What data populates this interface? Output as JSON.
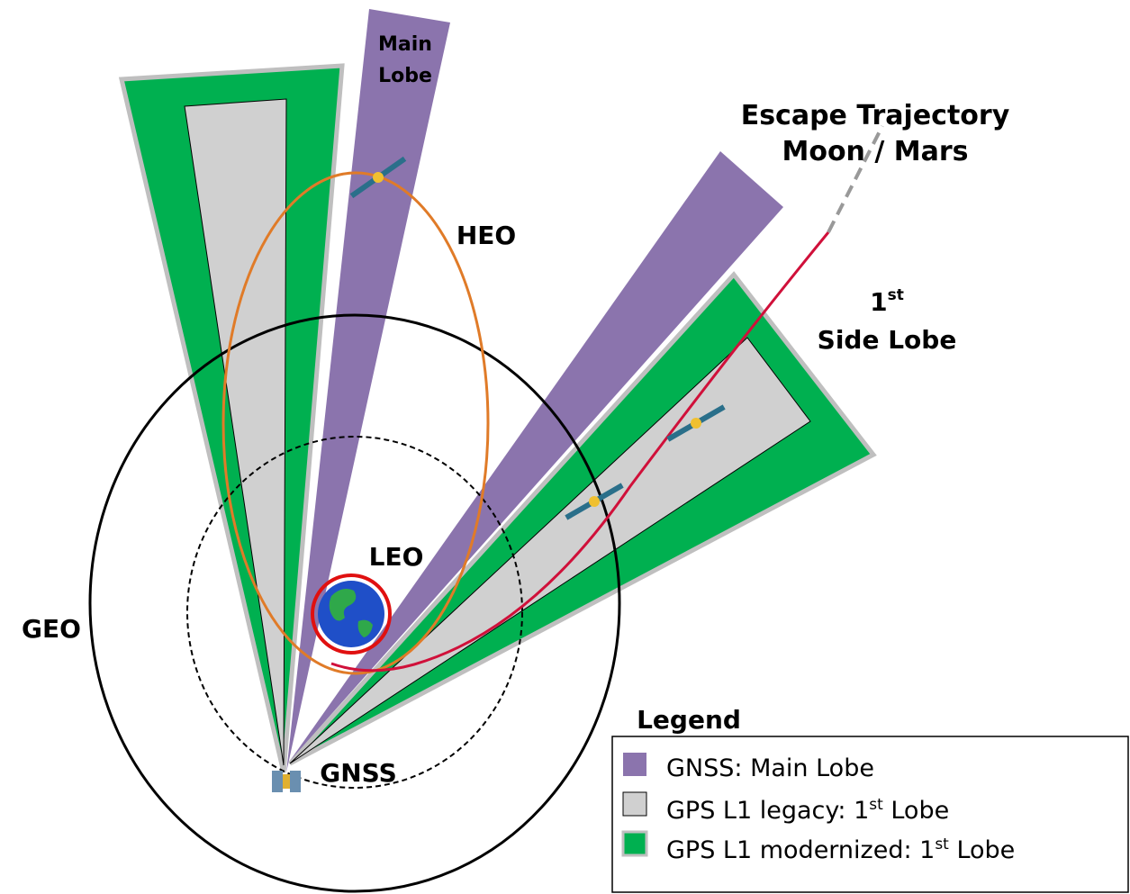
{
  "labels": {
    "main_lobe": [
      "Main",
      "Lobe"
    ],
    "escape": [
      "Escape Trajectory",
      "Moon / Mars"
    ],
    "heo": "HEO",
    "side_lobe": {
      "number": "1",
      "sup": "st",
      "text": "Side Lobe"
    },
    "leo": "LEO",
    "geo": "GEO",
    "gnss": "GNSS"
  },
  "legend": {
    "title": "Legend",
    "items": [
      {
        "text": "GNSS: Main Lobe"
      },
      {
        "text": "GPS L1 legacy: 1",
        "sup": "st",
        "rest": " Lobe"
      },
      {
        "text": "GPS L1 modernized: 1",
        "sup": "st",
        "rest": " Lobe"
      }
    ]
  }
}
